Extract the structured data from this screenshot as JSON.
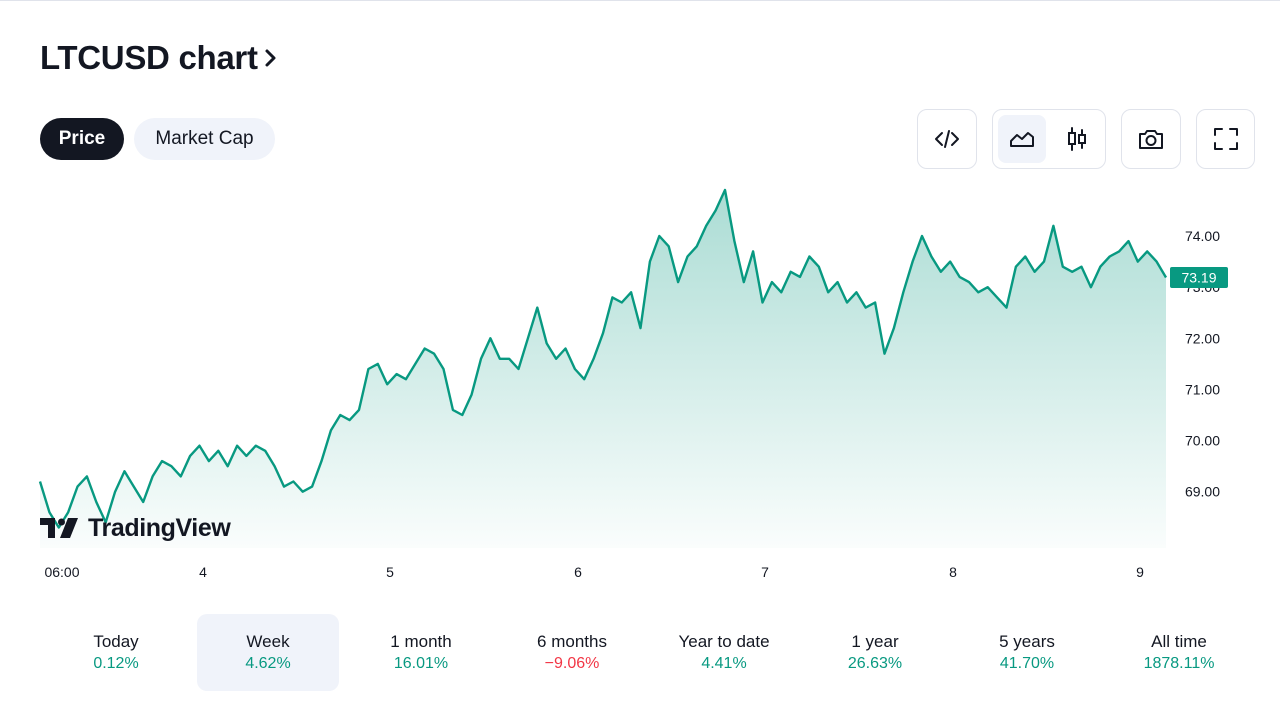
{
  "header": {
    "title": "LTCUSD chart"
  },
  "tabs": [
    {
      "label": "Price",
      "active": true
    },
    {
      "label": "Market Cap",
      "active": false
    }
  ],
  "toolbar": {
    "embed": {
      "icon": "code-embed-icon"
    },
    "area_chart": {
      "icon": "area-chart-icon",
      "active": true
    },
    "candles": {
      "icon": "candlestick-icon",
      "active": false
    },
    "snapshot": {
      "icon": "camera-icon"
    },
    "fullscreen": {
      "icon": "fullscreen-icon"
    }
  },
  "watermark": {
    "text": "TradingView"
  },
  "colors": {
    "line": "#089981",
    "negative": "#f23645",
    "active_bg": "#f0f3fa",
    "dark": "#131722"
  },
  "chart_data": {
    "type": "area",
    "symbol": "LTCUSD",
    "last_price": 73.19,
    "x_labels": [
      "06:00",
      "4",
      "5",
      "6",
      "7",
      "8",
      "9"
    ],
    "y_labels": [
      "69.00",
      "70.00",
      "71.00",
      "72.00",
      "73.00",
      "74.00"
    ],
    "ylim": [
      67.9,
      74.9
    ],
    "grid": false,
    "values": [
      69.2,
      68.6,
      68.3,
      68.6,
      69.1,
      69.3,
      68.8,
      68.4,
      69.0,
      69.4,
      69.1,
      68.8,
      69.3,
      69.6,
      69.5,
      69.3,
      69.7,
      69.9,
      69.6,
      69.8,
      69.5,
      69.9,
      69.7,
      69.9,
      69.8,
      69.5,
      69.1,
      69.2,
      69.0,
      69.1,
      69.6,
      70.2,
      70.5,
      70.4,
      70.6,
      71.4,
      71.5,
      71.1,
      71.3,
      71.2,
      71.5,
      71.8,
      71.7,
      71.4,
      70.6,
      70.5,
      70.9,
      71.6,
      72.0,
      71.6,
      71.6,
      71.4,
      72.0,
      72.6,
      71.9,
      71.6,
      71.8,
      71.4,
      71.2,
      71.6,
      72.1,
      72.8,
      72.7,
      72.9,
      72.2,
      73.5,
      74.0,
      73.8,
      73.1,
      73.6,
      73.8,
      74.2,
      74.5,
      74.9,
      73.9,
      73.1,
      73.7,
      72.7,
      73.1,
      72.9,
      73.3,
      73.2,
      73.6,
      73.4,
      72.9,
      73.1,
      72.7,
      72.9,
      72.6,
      72.7,
      71.7,
      72.2,
      72.9,
      73.5,
      74.0,
      73.6,
      73.3,
      73.5,
      73.2,
      73.1,
      72.9,
      73.0,
      72.8,
      72.6,
      73.4,
      73.6,
      73.3,
      73.5,
      74.2,
      73.4,
      73.3,
      73.4,
      73.0,
      73.4,
      73.6,
      73.7,
      73.9,
      73.5,
      73.7,
      73.5,
      73.19
    ]
  },
  "periods": [
    {
      "label": "Today",
      "value": "0.12%",
      "trend": "up",
      "active": false
    },
    {
      "label": "Week",
      "value": "4.62%",
      "trend": "up",
      "active": true
    },
    {
      "label": "1 month",
      "value": "16.01%",
      "trend": "up",
      "active": false
    },
    {
      "label": "6 months",
      "value": "−9.06%",
      "trend": "down",
      "active": false
    },
    {
      "label": "Year to date",
      "value": "4.41%",
      "trend": "up",
      "active": false
    },
    {
      "label": "1 year",
      "value": "26.63%",
      "trend": "up",
      "active": false
    },
    {
      "label": "5 years",
      "value": "41.70%",
      "trend": "up",
      "active": false
    },
    {
      "label": "All time",
      "value": "1878.11%",
      "trend": "up",
      "active": false
    }
  ]
}
